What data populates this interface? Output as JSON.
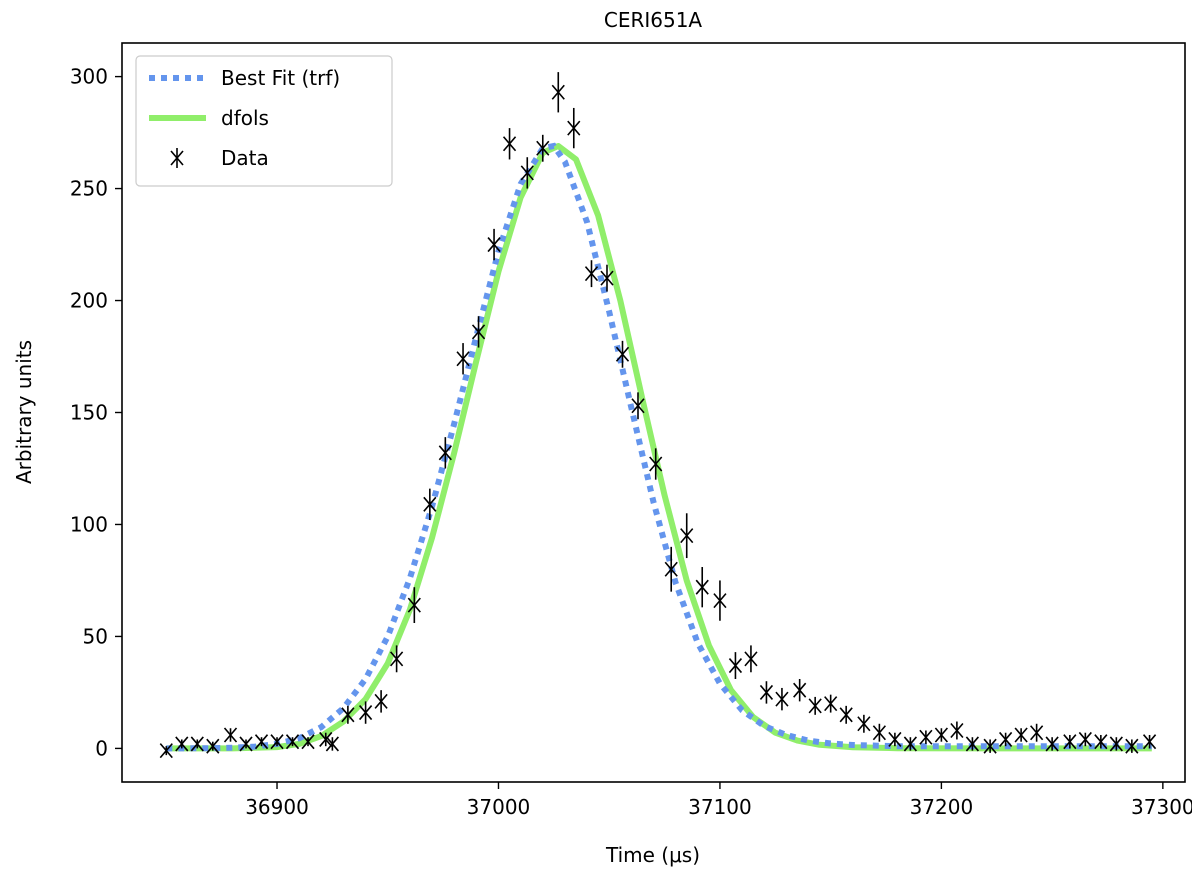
{
  "chart_data": {
    "type": "line",
    "title": "CERI651A",
    "xlabel": "Time (μs)",
    "ylabel": "Arbitrary units",
    "xlim": [
      36830,
      37310
    ],
    "ylim": [
      -15,
      315
    ],
    "xticks": [
      36900,
      37000,
      37100,
      37200,
      37300
    ],
    "yticks": [
      0,
      50,
      100,
      150,
      200,
      250,
      300
    ],
    "legend_position": "upper-left",
    "series": [
      {
        "name": "Best Fit (trf)",
        "style": "dotted",
        "color": "#6495ED",
        "points": [
          [
            36850,
            0
          ],
          [
            36870,
            0.1
          ],
          [
            36880,
            0.3
          ],
          [
            36890,
            0.8
          ],
          [
            36900,
            2.0
          ],
          [
            36910,
            4.5
          ],
          [
            36920,
            9.5
          ],
          [
            36930,
            18
          ],
          [
            36940,
            31
          ],
          [
            36950,
            50
          ],
          [
            36960,
            76
          ],
          [
            36970,
            108
          ],
          [
            36980,
            145
          ],
          [
            36990,
            184
          ],
          [
            37000,
            222
          ],
          [
            37010,
            252
          ],
          [
            37020,
            268
          ],
          [
            37025,
            269
          ],
          [
            37030,
            262
          ],
          [
            37040,
            235
          ],
          [
            37050,
            195
          ],
          [
            37060,
            152
          ],
          [
            37070,
            110
          ],
          [
            37080,
            74
          ],
          [
            37090,
            47
          ],
          [
            37100,
            29
          ],
          [
            37110,
            17
          ],
          [
            37120,
            10
          ],
          [
            37130,
            6
          ],
          [
            37140,
            3.5
          ],
          [
            37150,
            2.2
          ],
          [
            37160,
            1.5
          ],
          [
            37180,
            1.0
          ],
          [
            37200,
            1.0
          ],
          [
            37230,
            1.0
          ],
          [
            37260,
            1.0
          ],
          [
            37295,
            1.0
          ]
        ]
      },
      {
        "name": "dfols",
        "style": "solid",
        "color": "#90EE6A",
        "points": [
          [
            36850,
            0
          ],
          [
            36880,
            0
          ],
          [
            36900,
            0.6
          ],
          [
            36910,
            2
          ],
          [
            36920,
            5.5
          ],
          [
            36930,
            12
          ],
          [
            36940,
            22
          ],
          [
            36950,
            38
          ],
          [
            36960,
            62
          ],
          [
            36970,
            94
          ],
          [
            36980,
            132
          ],
          [
            36990,
            173
          ],
          [
            37000,
            213
          ],
          [
            37010,
            246
          ],
          [
            37020,
            266
          ],
          [
            37027,
            269
          ],
          [
            37035,
            263
          ],
          [
            37045,
            238
          ],
          [
            37055,
            200
          ],
          [
            37065,
            156
          ],
          [
            37075,
            113
          ],
          [
            37085,
            75
          ],
          [
            37095,
            46
          ],
          [
            37105,
            26
          ],
          [
            37115,
            14
          ],
          [
            37125,
            7
          ],
          [
            37135,
            3.5
          ],
          [
            37145,
            1.6
          ],
          [
            37160,
            0.5
          ],
          [
            37180,
            0.1
          ],
          [
            37220,
            0
          ],
          [
            37260,
            0
          ],
          [
            37295,
            0
          ]
        ]
      },
      {
        "name": "Data",
        "style": "marker",
        "color": "#000000",
        "points": [
          [
            36850,
            -1
          ],
          [
            36857,
            2
          ],
          [
            36864,
            2
          ],
          [
            36871,
            1
          ],
          [
            36879,
            6
          ],
          [
            36886,
            2
          ],
          [
            36893,
            3
          ],
          [
            36900,
            3
          ],
          [
            36907,
            3
          ],
          [
            36914,
            3
          ],
          [
            36922,
            4
          ],
          [
            36925,
            2
          ],
          [
            36932,
            15
          ],
          [
            36940,
            16
          ],
          [
            36947,
            21
          ],
          [
            36954,
            40
          ],
          [
            36962,
            64
          ],
          [
            36969,
            109
          ],
          [
            36976,
            132
          ],
          [
            36984,
            174
          ],
          [
            36991,
            186
          ],
          [
            36998,
            225
          ],
          [
            37005,
            270
          ],
          [
            37013,
            257
          ],
          [
            37020,
            268
          ],
          [
            37027,
            293
          ],
          [
            37034,
            277
          ],
          [
            37042,
            212
          ],
          [
            37049,
            210
          ],
          [
            37056,
            176
          ],
          [
            37063,
            153
          ],
          [
            37071,
            127
          ],
          [
            37078,
            80
          ],
          [
            37085,
            95
          ],
          [
            37092,
            72
          ],
          [
            37100,
            66
          ],
          [
            37107,
            37
          ],
          [
            37114,
            40
          ],
          [
            37121,
            25
          ],
          [
            37128,
            22
          ],
          [
            37136,
            26
          ],
          [
            37143,
            19
          ],
          [
            37150,
            20
          ],
          [
            37157,
            15
          ],
          [
            37165,
            11
          ],
          [
            37172,
            7
          ],
          [
            37179,
            4
          ],
          [
            37186,
            2
          ],
          [
            37193,
            5
          ],
          [
            37200,
            6
          ],
          [
            37207,
            8
          ],
          [
            37214,
            2
          ],
          [
            37222,
            1
          ],
          [
            37229,
            4
          ],
          [
            37236,
            6
          ],
          [
            37243,
            7
          ],
          [
            37250,
            2
          ],
          [
            37258,
            3
          ],
          [
            37265,
            4
          ],
          [
            37272,
            3
          ],
          [
            37279,
            2
          ],
          [
            37286,
            1
          ],
          [
            37294,
            3
          ]
        ],
        "errors": [
          [
            36850,
            2
          ],
          [
            36857,
            2
          ],
          [
            36864,
            2
          ],
          [
            36871,
            2
          ],
          [
            36879,
            3
          ],
          [
            36886,
            2
          ],
          [
            36893,
            2
          ],
          [
            36900,
            2
          ],
          [
            36907,
            2
          ],
          [
            36914,
            2
          ],
          [
            36922,
            3
          ],
          [
            36925,
            3
          ],
          [
            36932,
            4
          ],
          [
            36940,
            5
          ],
          [
            36947,
            5
          ],
          [
            36954,
            6
          ],
          [
            36962,
            8
          ],
          [
            36969,
            7
          ],
          [
            36976,
            7
          ],
          [
            36984,
            7
          ],
          [
            36991,
            7
          ],
          [
            36998,
            7
          ],
          [
            37005,
            7
          ],
          [
            37013,
            7
          ],
          [
            37020,
            6
          ],
          [
            37027,
            9
          ],
          [
            37034,
            9
          ],
          [
            37042,
            6
          ],
          [
            37049,
            6
          ],
          [
            37056,
            6
          ],
          [
            37063,
            6
          ],
          [
            37071,
            7
          ],
          [
            37078,
            10
          ],
          [
            37085,
            10
          ],
          [
            37092,
            9
          ],
          [
            37100,
            9
          ],
          [
            37107,
            6
          ],
          [
            37114,
            6
          ],
          [
            37121,
            5
          ],
          [
            37128,
            5
          ],
          [
            37136,
            5
          ],
          [
            37143,
            4
          ],
          [
            37150,
            4
          ],
          [
            37157,
            4
          ],
          [
            37165,
            4
          ],
          [
            37172,
            4
          ],
          [
            37179,
            3
          ],
          [
            37186,
            3
          ],
          [
            37193,
            3
          ],
          [
            37200,
            3
          ],
          [
            37207,
            4
          ],
          [
            37214,
            3
          ],
          [
            37222,
            3
          ],
          [
            37229,
            3
          ],
          [
            37236,
            3
          ],
          [
            37243,
            4
          ],
          [
            37250,
            3
          ],
          [
            37258,
            3
          ],
          [
            37265,
            3
          ],
          [
            37272,
            3
          ],
          [
            37279,
            3
          ],
          [
            37286,
            3
          ],
          [
            37294,
            3
          ]
        ]
      }
    ]
  }
}
